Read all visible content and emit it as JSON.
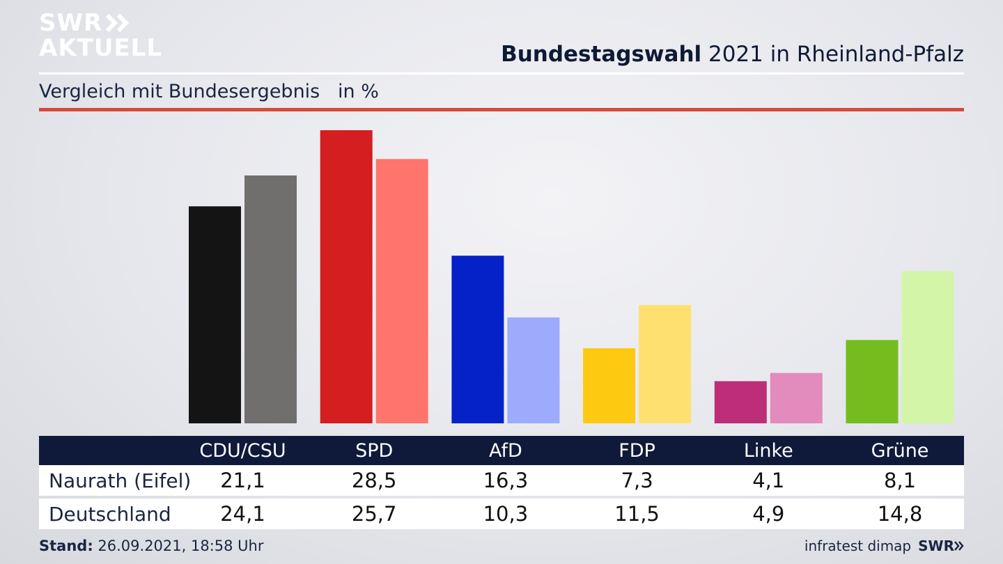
{
  "logo": {
    "line1": "SWR",
    "line2": "AKTUELL"
  },
  "header": {
    "title_bold": "Bundestagswahl",
    "title_rest": " 2021 in Rheinland-Pfalz"
  },
  "subtitle": "Vergleich mit Bundesergebnis   in %",
  "footer": {
    "stand_label": "Stand:",
    "stand_value": " 26.09.2021, 18:58 Uhr",
    "source": "infratest dimap",
    "brand": "SWR"
  },
  "chart_data": {
    "type": "bar",
    "categories": [
      "CDU/CSU",
      "SPD",
      "AfD",
      "FDP",
      "Linke",
      "Grüne"
    ],
    "series": [
      {
        "name": "Naurath (Eifel)",
        "values": [
          21.1,
          28.5,
          16.3,
          7.3,
          4.1,
          8.1
        ],
        "colors": [
          "#141414",
          "#d41e20",
          "#0422c8",
          "#fdc911",
          "#be2e78",
          "#75bc1f"
        ]
      },
      {
        "name": "Deutschland",
        "values": [
          24.1,
          25.7,
          10.3,
          11.5,
          4.9,
          14.8
        ],
        "colors": [
          "#706f6d",
          "#ff746c",
          "#9dabfd",
          "#fde06f",
          "#e28bbc",
          "#d3f5a8"
        ]
      }
    ],
    "ylim": [
      0,
      28.5
    ],
    "grid": false
  },
  "colors": {
    "header_bg": "#0f1a3a",
    "accent_red": "#d34b3a"
  }
}
